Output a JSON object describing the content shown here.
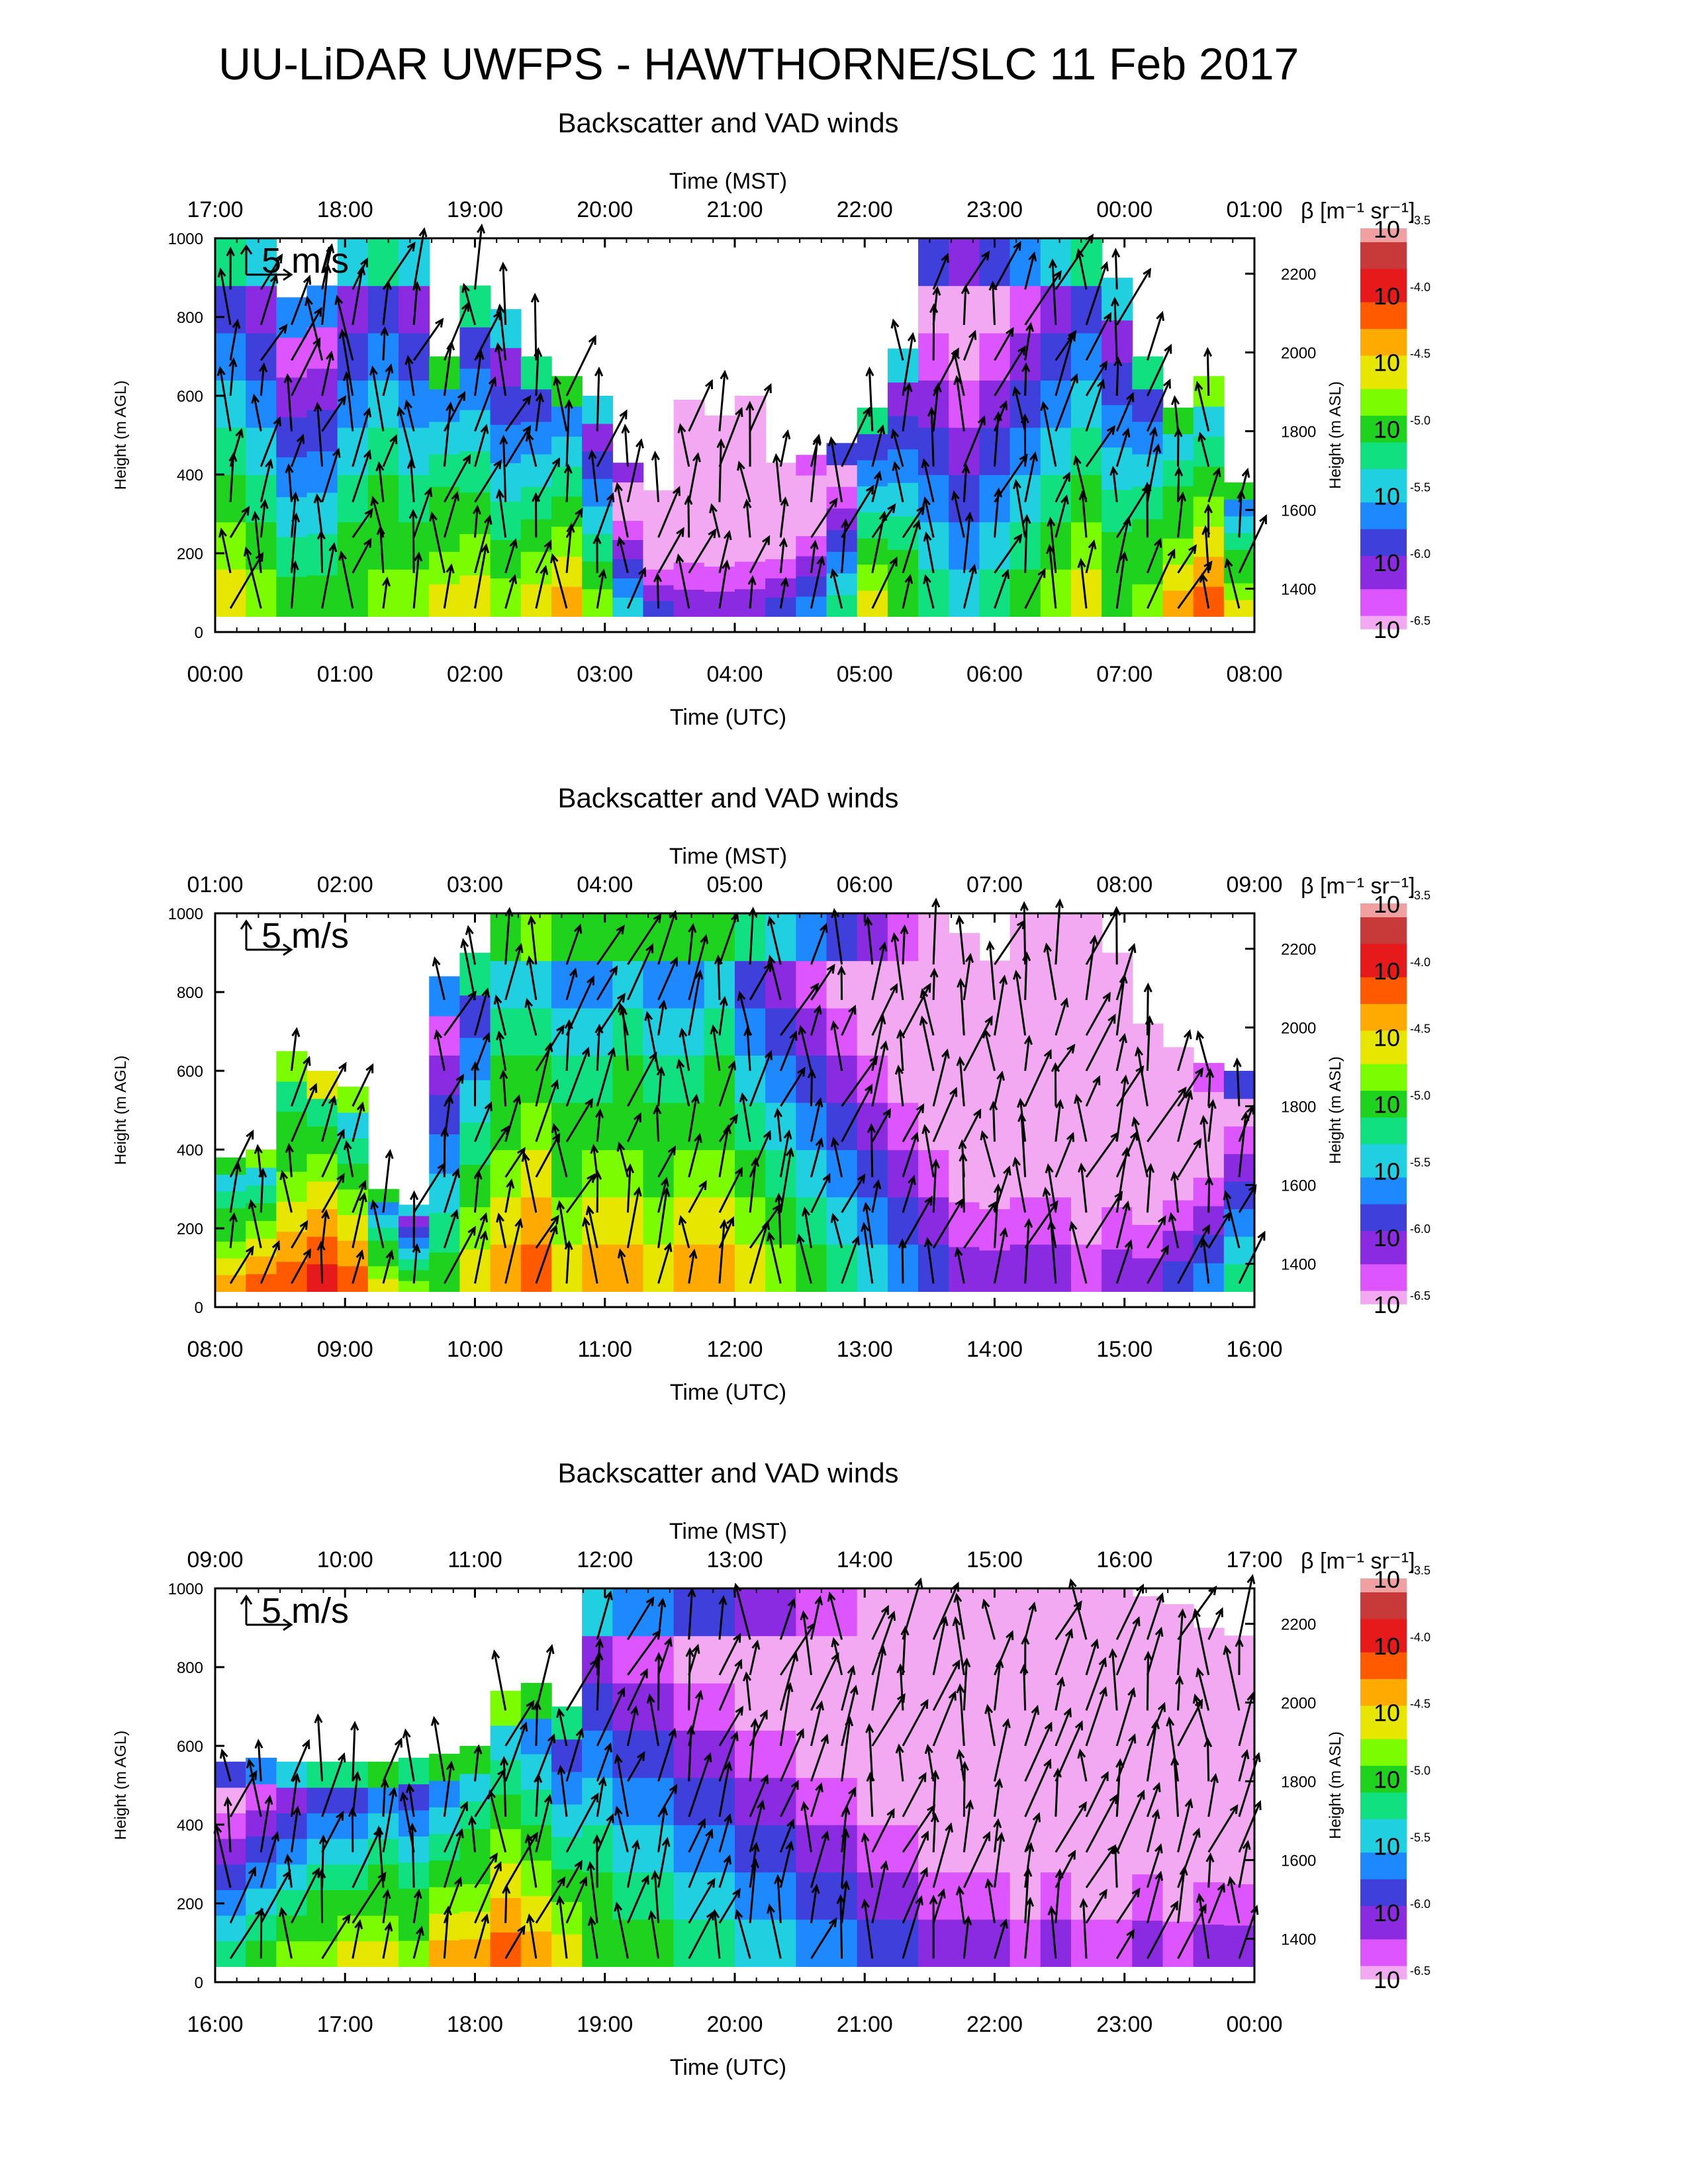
{
  "title": "UU-LiDAR UWFPS - HAWTHORNE/SLC 11 Feb 2017",
  "colors": {
    "colormap": [
      "#f2a9f2",
      "#dd55ff",
      "#8a2be2",
      "#3f3fdc",
      "#1e88ff",
      "#20d0e0",
      "#10e080",
      "#1ed21e",
      "#7cfc00",
      "#e6e600",
      "#ffaa00",
      "#ff5a00",
      "#e61a1a",
      "#c83a3a",
      "#f0a0a0"
    ],
    "arrow": "#000000"
  },
  "chart_data": [
    {
      "type": "heatmap",
      "title": "Backscatter and VAD winds",
      "top_axis_label": "Time (MST)",
      "xlabel": "Time (UTC)",
      "ylabel_left": "Height (m AGL)",
      "ylabel_right": "Height (m ASL)",
      "colorbar_label": "β [m⁻¹ sr⁻¹]",
      "scale_label": "5 m/s",
      "x_ticks_utc": [
        "00:00",
        "01:00",
        "02:00",
        "03:00",
        "04:00",
        "05:00",
        "06:00",
        "07:00",
        "08:00"
      ],
      "x_ticks_mst": [
        "17:00",
        "18:00",
        "19:00",
        "20:00",
        "21:00",
        "22:00",
        "23:00",
        "00:00",
        "01:00"
      ],
      "y_ticks_agl": [
        0,
        200,
        400,
        600,
        800,
        1000
      ],
      "y_ticks_asl": [
        1400,
        1600,
        1800,
        2000,
        2200
      ],
      "ylim_agl": [
        0,
        1000
      ],
      "colorbar_ticks": [
        "-3.5",
        "-4.0",
        "-4.5",
        "-5.0",
        "-5.5",
        "-6.0",
        "-6.5"
      ],
      "colorbar_range_log10": [
        -6.5,
        -3.5
      ],
      "data_top_agl": [
        1000,
        1000,
        850,
        880,
        1000,
        1000,
        1000,
        700,
        880,
        820,
        700,
        650,
        600,
        430,
        360,
        590,
        550,
        600,
        430,
        450,
        480,
        570,
        720,
        1000,
        1000,
        1000,
        1000,
        1000,
        1000,
        900,
        700,
        570,
        650,
        380
      ],
      "backscatter_log10_near_surface": [
        -4.6,
        -4.8,
        -5.0,
        -5.1,
        -4.9,
        -4.7,
        -4.8,
        -4.5,
        -4.6,
        -4.8,
        -4.6,
        -4.4,
        -4.8,
        -5.4,
        -5.8,
        -6.0,
        -6.1,
        -6.0,
        -5.9,
        -5.6,
        -5.3,
        -4.6,
        -4.9,
        -5.2,
        -5.4,
        -5.3,
        -5.1,
        -4.8,
        -4.6,
        -4.9,
        -4.7,
        -4.3,
        -4.2,
        -4.5
      ]
    },
    {
      "type": "heatmap",
      "title": "Backscatter and VAD winds",
      "top_axis_label": "Time (MST)",
      "xlabel": "Time (UTC)",
      "ylabel_left": "Height (m AGL)",
      "ylabel_right": "Height (m ASL)",
      "colorbar_label": "β [m⁻¹ sr⁻¹]",
      "scale_label": "5 m/s",
      "x_ticks_utc": [
        "08:00",
        "09:00",
        "10:00",
        "11:00",
        "12:00",
        "13:00",
        "14:00",
        "15:00",
        "16:00"
      ],
      "x_ticks_mst": [
        "01:00",
        "02:00",
        "03:00",
        "04:00",
        "05:00",
        "06:00",
        "07:00",
        "08:00",
        "09:00"
      ],
      "y_ticks_agl": [
        0,
        200,
        400,
        600,
        800,
        1000
      ],
      "y_ticks_asl": [
        1400,
        1600,
        1800,
        2000,
        2200
      ],
      "ylim_agl": [
        0,
        1000
      ],
      "colorbar_ticks": [
        "-3.5",
        "-4.0",
        "-4.5",
        "-5.0",
        "-5.5",
        "-6.0",
        "-6.5"
      ],
      "colorbar_range_log10": [
        -6.5,
        -3.5
      ],
      "data_top_agl": [
        380,
        400,
        650,
        600,
        560,
        300,
        260,
        840,
        900,
        1000,
        1000,
        1000,
        1000,
        1000,
        1000,
        1000,
        1000,
        1000,
        1000,
        1000,
        1000,
        1000,
        1000,
        1000,
        950,
        880,
        1000,
        1000,
        1000,
        900,
        720,
        660,
        620,
        600
      ],
      "backscatter_log10_near_surface": [
        -4.3,
        -4.2,
        -4.1,
        -4.0,
        -4.2,
        -4.5,
        -4.8,
        -5.0,
        -4.6,
        -4.3,
        -4.2,
        -4.5,
        -4.4,
        -4.3,
        -4.5,
        -4.4,
        -4.3,
        -4.6,
        -4.8,
        -5.0,
        -5.2,
        -5.4,
        -5.6,
        -5.8,
        -6.0,
        -6.1,
        -6.0,
        -6.1,
        -6.2,
        -6.1,
        -6.0,
        -5.9,
        -5.6,
        -5.3
      ]
    },
    {
      "type": "heatmap",
      "title": "Backscatter and VAD winds",
      "top_axis_label": "Time (MST)",
      "xlabel": "Time (UTC)",
      "ylabel_left": "Height (m AGL)",
      "ylabel_right": "Height (m ASL)",
      "colorbar_label": "β [m⁻¹ sr⁻¹]",
      "scale_label": "5 m/s",
      "x_ticks_utc": [
        "16:00",
        "17:00",
        "18:00",
        "19:00",
        "20:00",
        "21:00",
        "22:00",
        "23:00",
        "00:00"
      ],
      "x_ticks_mst": [
        "09:00",
        "10:00",
        "11:00",
        "12:00",
        "13:00",
        "14:00",
        "15:00",
        "16:00",
        "17:00"
      ],
      "y_ticks_agl": [
        0,
        200,
        400,
        600,
        800,
        1000
      ],
      "y_ticks_asl": [
        1400,
        1600,
        1800,
        2000,
        2200
      ],
      "ylim_agl": [
        0,
        1000
      ],
      "colorbar_ticks": [
        "-3.5",
        "-4.0",
        "-4.5",
        "-5.0",
        "-5.5",
        "-6.0",
        "-6.5"
      ],
      "colorbar_range_log10": [
        -6.5,
        -3.5
      ],
      "data_top_agl": [
        560,
        570,
        560,
        560,
        560,
        560,
        570,
        580,
        600,
        740,
        760,
        700,
        1000,
        1000,
        1000,
        1000,
        1000,
        1000,
        1000,
        1000,
        1000,
        1000,
        1000,
        1000,
        1000,
        1000,
        1000,
        1000,
        1000,
        1000,
        980,
        960,
        900,
        880
      ],
      "backscatter_log10_near_surface": [
        -5.2,
        -5.0,
        -4.8,
        -4.7,
        -4.6,
        -4.5,
        -4.7,
        -4.4,
        -4.3,
        -4.2,
        -4.4,
        -4.6,
        -4.9,
        -5.0,
        -5.1,
        -5.2,
        -5.3,
        -5.4,
        -5.5,
        -5.6,
        -5.7,
        -5.8,
        -5.9,
        -6.0,
        -6.1,
        -6.1,
        -6.2,
        -6.1,
        -6.2,
        -6.2,
        -6.1,
        -6.2,
        -6.1,
        -6.0
      ]
    }
  ]
}
